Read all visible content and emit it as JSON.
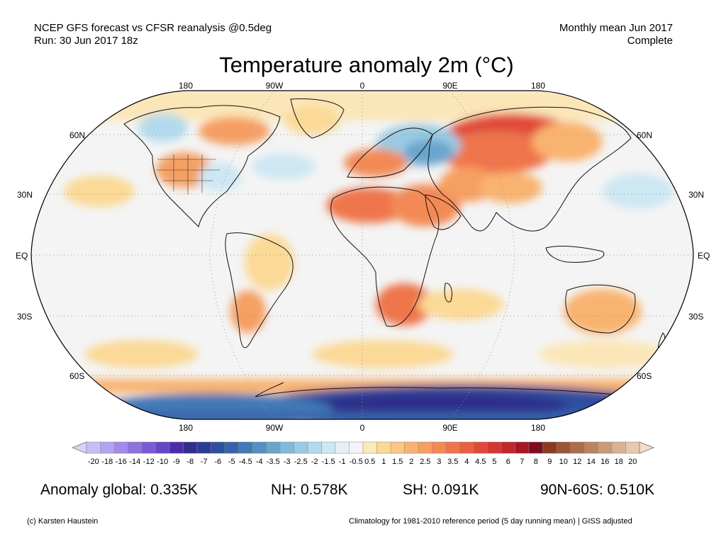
{
  "header": {
    "line1_left": "NCEP GFS forecast vs CFSR reanalysis @0.5deg",
    "line2_left": "Run: 30 Jun 2017 18z",
    "line1_right": "Monthly mean Jun 2017",
    "line2_right": "Complete"
  },
  "title": "Temperature anomaly 2m (°C)",
  "map": {
    "projection": "robinson",
    "lon_labels": [
      "180",
      "90W",
      "0",
      "90E",
      "180"
    ],
    "lat_labels_left": [
      "60N",
      "30N",
      "EQ",
      "30S",
      "60S"
    ],
    "lat_labels_right": [
      "60N",
      "30N",
      "EQ",
      "30S",
      "60S"
    ],
    "gridlines": "dotted",
    "background_color": "#f4f4f4",
    "outline_color": "#000000",
    "anomaly_patches": [
      {
        "region": "Eastern Siberia",
        "lon": 120,
        "lat": 62,
        "value": 4
      },
      {
        "region": "Sahara",
        "lon": 5,
        "lat": 22,
        "value": 3
      },
      {
        "region": "Arabia",
        "lon": 45,
        "lat": 25,
        "value": 3
      },
      {
        "region": "Southern Africa",
        "lon": 25,
        "lat": -20,
        "value": 3
      },
      {
        "region": "Australia",
        "lon": 135,
        "lat": -25,
        "value": 1.5
      },
      {
        "region": "Western Russia",
        "lon": 40,
        "lat": 58,
        "value": -2
      },
      {
        "region": "Antarctica",
        "lon": 60,
        "lat": -78,
        "value": -8
      }
    ]
  },
  "colorbar": {
    "ticks": [
      "-20",
      "-18",
      "-16",
      "-14",
      "-12",
      "-10",
      "-9",
      "-8",
      "-7",
      "-6",
      "-5",
      "-4.5",
      "-4",
      "-3.5",
      "-3",
      "-2.5",
      "-2",
      "-1.5",
      "-1",
      "-0.5",
      "0.5",
      "1",
      "1.5",
      "2",
      "2.5",
      "3",
      "3.5",
      "4",
      "4.5",
      "5",
      "6",
      "7",
      "8",
      "9",
      "10",
      "12",
      "14",
      "16",
      "18",
      "20"
    ],
    "colors": [
      "#c7bef5",
      "#b4a4ef",
      "#a08be8",
      "#8e72df",
      "#7b5ad4",
      "#6843c6",
      "#4b2ea6",
      "#2f2f8a",
      "#2b3b95",
      "#2f4f9f",
      "#3763aa",
      "#4279b6",
      "#5590c2",
      "#6aa5ce",
      "#82b9d9",
      "#9acae3",
      "#b3daec",
      "#cde7f3",
      "#e4f1f8",
      "#f4f4f4",
      "#fbe9b9",
      "#fbd996",
      "#fbc782",
      "#f9b370",
      "#f69f62",
      "#f38a56",
      "#ef744b",
      "#e95f42",
      "#e0493a",
      "#d53633",
      "#c4262d",
      "#a51725",
      "#7d0d1c",
      "#8b3a22",
      "#9c5535",
      "#ad6d49",
      "#bb845f",
      "#c99a77",
      "#d8b292",
      "#e6c9b0"
    ],
    "low_arrow_color": "#d9d2fa",
    "high_arrow_color": "#f2ddcc"
  },
  "stats": {
    "global": "Anomaly global: 0.335K",
    "nh": "NH: 0.578K",
    "sh": "SH: 0.091K",
    "arctic": "90N-60S: 0.510K"
  },
  "footer": {
    "credit": "(c) Karsten Haustein",
    "climatology": "Climatology for 1981-2010 reference period (5 day running mean) | GISS adjusted"
  }
}
